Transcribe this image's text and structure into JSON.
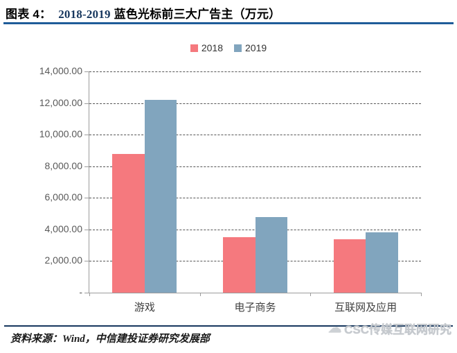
{
  "title": {
    "prefix": "图表 4：",
    "range": "2018-2019",
    "rest": " 蓝色光标前三大广告主（万元）"
  },
  "footer": {
    "source": "资料来源：Wind，中信建投证券研究发展部"
  },
  "watermark": {
    "icon": "cloud-logo",
    "text": "CSC传媒互联网研究"
  },
  "colors": {
    "rule_top": "#1F5C99",
    "rule_bottom": "#17375E",
    "axis": "#9B9B9B",
    "gridline": "#555555",
    "series_2018": "#F5797E",
    "series_2019": "#81A5BE"
  },
  "chart_data": {
    "type": "bar",
    "title": "2018-2019 蓝色光标前三大广告主（万元）",
    "categories": [
      "游戏",
      "电子商务",
      "互联网及应用"
    ],
    "series": [
      {
        "name": "2018",
        "color": "#F5797E",
        "values": [
          8800,
          3500,
          3400
        ]
      },
      {
        "name": "2019",
        "color": "#81A5BE",
        "values": [
          12200,
          4800,
          3800
        ]
      }
    ],
    "xlabel": "",
    "ylabel": "",
    "ylim": [
      0,
      14000
    ],
    "ytick_step": 2000,
    "ytick_labels_bottom_to_top": [
      "-",
      "2,000.00",
      "4,000.00",
      "6,000.00",
      "8,000.00",
      "10,000.00",
      "12,000.00",
      "14,000.00"
    ],
    "grid": true,
    "gridline_style": "dashed",
    "legend_position": "top-center"
  }
}
